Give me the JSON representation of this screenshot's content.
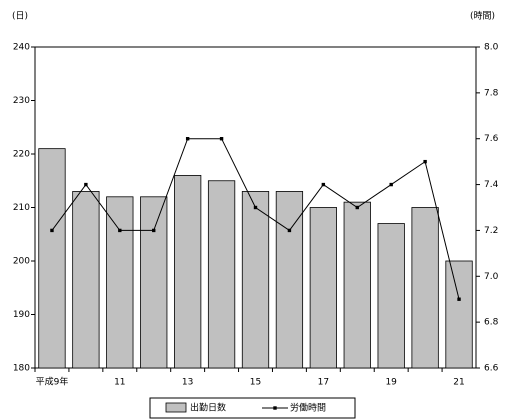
{
  "chart_data": {
    "type": "bar",
    "y_label": "(日)",
    "y2_label": "(時間)",
    "categories": [
      "平成9年",
      null,
      "11",
      null,
      "13",
      null,
      "15",
      null,
      "17",
      null,
      "19",
      null,
      "21"
    ],
    "series": [
      {
        "name": "出勤日数",
        "type": "bar",
        "color": "#c0c0c0",
        "values": [
          221,
          213,
          212,
          212,
          216,
          215,
          213,
          213,
          210,
          211,
          207,
          210,
          200
        ]
      },
      {
        "name": "労働時間",
        "type": "line",
        "axis": "y2",
        "color": "#000000",
        "values": [
          7.2,
          7.4,
          7.2,
          7.2,
          7.6,
          7.6,
          7.3,
          7.2,
          7.4,
          7.3,
          7.4,
          7.5,
          6.9
        ]
      }
    ],
    "ylim": [
      180,
      240
    ],
    "yticks": [
      180,
      190,
      200,
      210,
      220,
      230,
      240
    ],
    "y2lim": [
      6.6,
      8.0
    ],
    "y2ticks": [
      6.6,
      6.8,
      {
        "value": 7.0,
        "label": "7.0"
      },
      7.2,
      7.4,
      7.6,
      7.8,
      {
        "value": 8.0,
        "label": "8.0"
      }
    ],
    "grid": false,
    "legend": "bottom"
  }
}
